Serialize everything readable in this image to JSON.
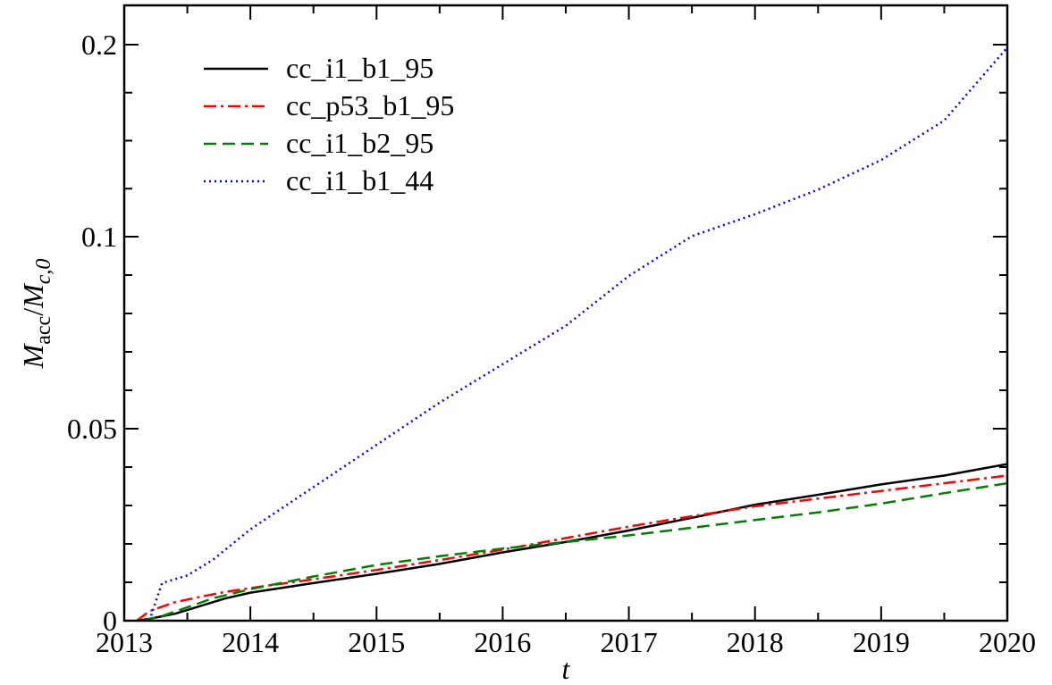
{
  "chart_data": {
    "type": "line",
    "xlabel": "t",
    "ylabel": {
      "main": "M",
      "main_sub": "acc",
      "slash": "/",
      "den": "M",
      "den_sub": "c,0"
    },
    "xlim": [
      2013,
      2020
    ],
    "ylim_display": [
      0,
      0.2
    ],
    "x_ticks": [
      "2013",
      "2014",
      "2015",
      "2016",
      "2017",
      "2018",
      "2019",
      "2020"
    ],
    "y_ticks": [
      {
        "label": "0",
        "value": 0
      },
      {
        "label": "0.05",
        "value": 0.05
      },
      {
        "label": "0.1",
        "value": 0.1
      },
      {
        "label": "0.2",
        "value": 0.2
      }
    ],
    "y_scale": "piecewise: linear 0–0.1, compressed 0.1–0.2",
    "grid": false,
    "legend_position": "top-left",
    "series": [
      {
        "name": "cc_i1_b1_95",
        "color": "#000000",
        "dash": "solid",
        "x": [
          2013.1,
          2013.2,
          2013.4,
          2013.6,
          2013.8,
          2014.0,
          2014.5,
          2015.0,
          2015.5,
          2016.0,
          2016.5,
          2017.0,
          2017.5,
          2018.0,
          2018.5,
          2019.0,
          2019.5,
          2020.0
        ],
        "y": [
          0.0,
          0.0005,
          0.0018,
          0.0038,
          0.0058,
          0.0073,
          0.0098,
          0.0122,
          0.0148,
          0.0178,
          0.0205,
          0.0235,
          0.0268,
          0.0302,
          0.0328,
          0.0355,
          0.0378,
          0.0408
        ]
      },
      {
        "name": "cc_p53_b1_95",
        "color": "#ff0000",
        "dash": "dashdot",
        "x": [
          2013.1,
          2013.2,
          2013.4,
          2013.6,
          2013.8,
          2014.0,
          2014.5,
          2015.0,
          2015.5,
          2016.0,
          2016.5,
          2017.0,
          2017.5,
          2018.0,
          2018.5,
          2019.0,
          2019.5,
          2020.0
        ],
        "y": [
          0.0,
          0.0025,
          0.0048,
          0.0062,
          0.0075,
          0.0085,
          0.0108,
          0.0132,
          0.0158,
          0.0185,
          0.0215,
          0.0245,
          0.0272,
          0.0298,
          0.0318,
          0.0338,
          0.0358,
          0.0378
        ]
      },
      {
        "name": "cc_i1_b2_95",
        "color": "#008000",
        "dash": "dashed",
        "x": [
          2013.15,
          2013.3,
          2013.5,
          2013.7,
          2014.0,
          2014.5,
          2015.0,
          2015.5,
          2016.0,
          2016.5,
          2017.0,
          2017.5,
          2018.0,
          2018.5,
          2019.0,
          2019.5,
          2020.0
        ],
        "y": [
          0.0,
          0.0012,
          0.0035,
          0.0058,
          0.0082,
          0.0115,
          0.0145,
          0.0168,
          0.0188,
          0.0205,
          0.0222,
          0.0242,
          0.0262,
          0.0282,
          0.0305,
          0.0332,
          0.0358
        ]
      },
      {
        "name": "cc_i1_b1_44",
        "color": "#0000ff",
        "dash": "dotted",
        "x": [
          2013.2,
          2013.25,
          2013.3,
          2013.5,
          2013.7,
          2014.0,
          2014.5,
          2015.0,
          2015.5,
          2016.0,
          2016.5,
          2017.0,
          2017.5,
          2018.0,
          2018.5,
          2019.0,
          2019.5,
          2020.0
        ],
        "y": [
          0.0,
          0.005,
          0.0098,
          0.0118,
          0.0158,
          0.0238,
          0.0348,
          0.0458,
          0.0568,
          0.0668,
          0.0768,
          0.0898,
          0.1003,
          0.1117,
          0.1245,
          0.1399,
          0.1605,
          0.1985
        ]
      }
    ]
  }
}
